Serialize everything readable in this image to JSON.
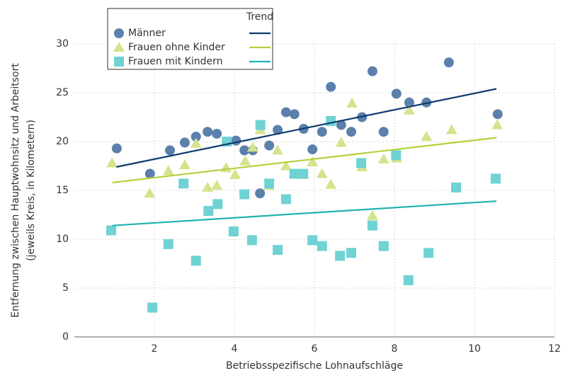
{
  "chart_data": {
    "type": "scatter",
    "x_label": "Betriebsspezifische Lohnaufschläge",
    "y_label": [
      "Entfernung zwischen Hauptwohnsitz und Arbeitsort",
      "(jeweils Kreis, in Kilometern)"
    ],
    "trend_label": "Trend",
    "xlim": [
      0,
      12
    ],
    "ylim": [
      0,
      30
    ],
    "xticks": [
      2,
      4,
      6,
      8,
      10,
      12
    ],
    "yticks": [
      0,
      5,
      10,
      15,
      20,
      25,
      30
    ],
    "grid": true,
    "series": [
      {
        "name": "Männer",
        "marker": "circle",
        "color": "#5b80ab",
        "trend_color": "#0d3a6e",
        "x": [
          1.06,
          1.89,
          2.39,
          2.76,
          3.04,
          3.33,
          3.56,
          3.82,
          4.04,
          4.25,
          4.46,
          4.64,
          4.87,
          5.08,
          5.29,
          5.5,
          5.73,
          5.95,
          6.19,
          6.41,
          6.67,
          6.92,
          7.19,
          7.45,
          7.73,
          8.05,
          8.37,
          8.8,
          9.36,
          10.58
        ],
        "values": [
          19.3,
          16.7,
          19.1,
          19.9,
          20.5,
          21.0,
          20.8,
          20.0,
          20.1,
          19.1,
          19.1,
          14.7,
          19.6,
          21.2,
          23.0,
          22.8,
          21.3,
          19.2,
          21.0,
          25.6,
          21.7,
          21.0,
          22.5,
          27.2,
          21.0,
          24.9,
          24.0,
          24.0,
          28.1,
          22.8
        ],
        "trend_x": [
          1.05,
          10.55
        ],
        "trend_values": [
          17.4,
          25.4
        ]
      },
      {
        "name": "Frauen ohne Kinder",
        "marker": "triangle",
        "color": "#d3e48c",
        "trend_color": "#b6cf3a",
        "x": [
          0.94,
          1.88,
          2.35,
          2.76,
          3.04,
          3.33,
          3.56,
          3.79,
          4.02,
          4.27,
          4.46,
          4.65,
          4.87,
          5.08,
          5.29,
          5.5,
          5.73,
          5.95,
          6.19,
          6.41,
          6.67,
          6.94,
          7.19,
          7.45,
          7.73,
          8.05,
          8.37,
          8.8,
          9.43,
          10.57
        ],
        "values": [
          17.8,
          14.7,
          17.0,
          17.6,
          19.8,
          15.3,
          15.5,
          17.3,
          16.6,
          18.0,
          19.4,
          21.2,
          15.5,
          19.1,
          17.5,
          16.7,
          16.6,
          17.9,
          16.7,
          15.6,
          19.9,
          23.9,
          17.4,
          12.4,
          18.2,
          18.3,
          23.2,
          20.5,
          21.2,
          21.7
        ],
        "trend_x": [
          0.95,
          10.55
        ],
        "trend_values": [
          15.8,
          20.4
        ]
      },
      {
        "name": "Frauen mit Kindern",
        "marker": "square",
        "color": "#6fd2d3",
        "trend_color": "#1fb3b3",
        "x": [
          0.92,
          1.95,
          2.35,
          2.73,
          3.04,
          3.35,
          3.58,
          3.81,
          3.98,
          4.25,
          4.44,
          4.65,
          4.87,
          5.08,
          5.29,
          5.5,
          5.72,
          5.95,
          6.19,
          6.41,
          6.64,
          6.92,
          7.17,
          7.45,
          7.73,
          8.04,
          8.35,
          8.85,
          9.54,
          10.53
        ],
        "values": [
          10.9,
          3.0,
          9.5,
          15.7,
          7.8,
          12.9,
          13.6,
          20.0,
          10.8,
          14.6,
          9.9,
          21.7,
          15.7,
          8.9,
          14.1,
          16.7,
          16.7,
          9.9,
          9.3,
          22.1,
          8.3,
          8.6,
          17.8,
          11.4,
          9.3,
          18.6,
          5.8,
          8.6,
          15.3,
          16.2
        ],
        "trend_x": [
          0.95,
          10.55
        ],
        "trend_values": [
          11.4,
          13.9
        ]
      }
    ]
  }
}
